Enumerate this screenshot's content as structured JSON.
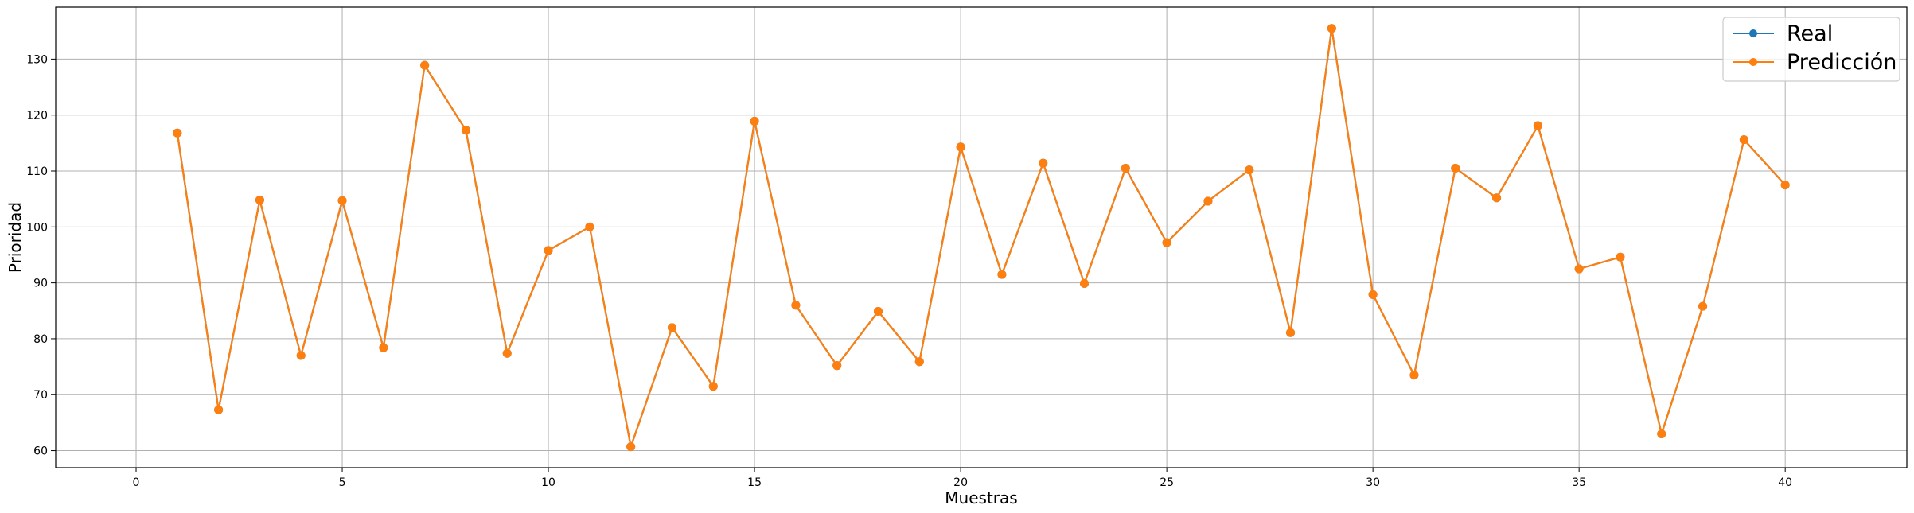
{
  "chart_data": {
    "type": "line",
    "title": "",
    "xlabel": "Muestras",
    "ylabel": "Prioridad",
    "xlim": [
      -1.95,
      42.95
    ],
    "ylim": [
      56.95,
      139.3
    ],
    "xticks": [
      0,
      5,
      10,
      15,
      20,
      25,
      30,
      35,
      40
    ],
    "yticks": [
      60,
      70,
      80,
      90,
      100,
      110,
      120,
      130
    ],
    "grid": true,
    "legend_position": "top-right",
    "x": [
      1,
      2,
      3,
      4,
      5,
      6,
      7,
      8,
      9,
      10,
      11,
      12,
      13,
      14,
      15,
      16,
      17,
      18,
      19,
      20,
      21,
      22,
      23,
      24,
      25,
      26,
      27,
      28,
      29,
      30,
      31,
      32,
      33,
      34,
      35,
      36,
      37,
      38,
      39,
      40
    ],
    "series": [
      {
        "name": "Real",
        "color": "#1f77b4",
        "marker": "circle",
        "values": [
          116.8,
          67.3,
          104.8,
          77.0,
          104.7,
          78.4,
          128.9,
          117.3,
          77.4,
          95.8,
          100.0,
          60.7,
          82.0,
          71.5,
          118.9,
          86.0,
          75.2,
          84.9,
          75.9,
          114.3,
          91.5,
          111.4,
          89.9,
          110.5,
          97.2,
          104.6,
          110.2,
          81.1,
          135.5,
          87.9,
          73.5,
          110.5,
          105.2,
          118.1,
          92.5,
          94.6,
          63.0,
          85.8,
          115.6,
          107.5
        ]
      },
      {
        "name": "Predicción",
        "color": "#ff7f0e",
        "marker": "circle",
        "values": [
          116.8,
          67.3,
          104.8,
          77.0,
          104.7,
          78.4,
          128.9,
          117.3,
          77.4,
          95.8,
          100.0,
          60.7,
          82.0,
          71.5,
          118.9,
          86.0,
          75.2,
          84.9,
          75.9,
          114.3,
          91.5,
          111.4,
          89.9,
          110.5,
          97.2,
          104.6,
          110.2,
          81.1,
          135.5,
          87.9,
          73.5,
          110.5,
          105.2,
          118.1,
          92.5,
          94.6,
          63.0,
          85.8,
          115.6,
          107.5
        ]
      }
    ]
  }
}
